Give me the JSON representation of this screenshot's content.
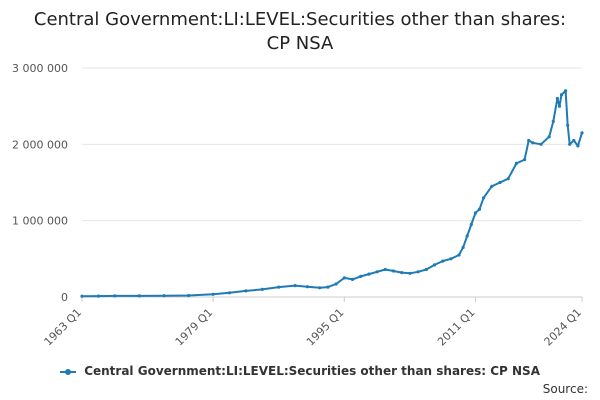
{
  "chart_data": {
    "type": "line",
    "title_line1": "Central Government:LI:LEVEL:Securities other than shares:",
    "title_line2": "CP NSA",
    "xlabel": "",
    "ylabel": "",
    "x_ticks": [
      "1963 Q1",
      "1979 Q1",
      "1995 Q1",
      "2011 Q1",
      "2024 Q1"
    ],
    "y_ticks": [
      "0",
      "1 000 000",
      "2 000 000",
      "3 000 000"
    ],
    "ylim": [
      0,
      3000000
    ],
    "xlim": [
      "1963 Q1",
      "2024 Q1"
    ],
    "grid": true,
    "legend_position": "bottom",
    "color": "#1f7bb6",
    "series": [
      {
        "name": "Central Government:LI:LEVEL:Securities other than shares: CP NSA",
        "points": [
          [
            "1963 Q1",
            10000
          ],
          [
            "1965 Q1",
            12000
          ],
          [
            "1967 Q1",
            14000
          ],
          [
            "1970 Q1",
            15000
          ],
          [
            "1973 Q1",
            17000
          ],
          [
            "1976 Q1",
            20000
          ],
          [
            "1979 Q1",
            35000
          ],
          [
            "1981 Q1",
            55000
          ],
          [
            "1983 Q1",
            80000
          ],
          [
            "1985 Q1",
            100000
          ],
          [
            "1987 Q1",
            130000
          ],
          [
            "1989 Q1",
            150000
          ],
          [
            "1990 Q3",
            135000
          ],
          [
            "1992 Q1",
            120000
          ],
          [
            "1993 Q1",
            130000
          ],
          [
            "1994 Q1",
            170000
          ],
          [
            "1995 Q1",
            250000
          ],
          [
            "1996 Q1",
            230000
          ],
          [
            "1997 Q1",
            270000
          ],
          [
            "1998 Q1",
            300000
          ],
          [
            "1999 Q1",
            330000
          ],
          [
            "2000 Q1",
            360000
          ],
          [
            "2001 Q1",
            340000
          ],
          [
            "2002 Q1",
            320000
          ],
          [
            "2003 Q1",
            310000
          ],
          [
            "2004 Q1",
            330000
          ],
          [
            "2005 Q1",
            360000
          ],
          [
            "2006 Q1",
            420000
          ],
          [
            "2007 Q1",
            470000
          ],
          [
            "2008 Q1",
            500000
          ],
          [
            "2009 Q1",
            550000
          ],
          [
            "2009 Q3",
            650000
          ],
          [
            "2010 Q1",
            800000
          ],
          [
            "2010 Q3",
            950000
          ],
          [
            "2011 Q1",
            1100000
          ],
          [
            "2011 Q3",
            1150000
          ],
          [
            "2012 Q1",
            1300000
          ],
          [
            "2013 Q1",
            1450000
          ],
          [
            "2014 Q1",
            1500000
          ],
          [
            "2015 Q1",
            1550000
          ],
          [
            "2016 Q1",
            1750000
          ],
          [
            "2017 Q1",
            1800000
          ],
          [
            "2017 Q3",
            2050000
          ],
          [
            "2018 Q1",
            2020000
          ],
          [
            "2019 Q1",
            2000000
          ],
          [
            "2020 Q1",
            2100000
          ],
          [
            "2020 Q3",
            2300000
          ],
          [
            "2021 Q1",
            2600000
          ],
          [
            "2021 Q2",
            2500000
          ],
          [
            "2021 Q3",
            2650000
          ],
          [
            "2022 Q1",
            2700000
          ],
          [
            "2022 Q2",
            2250000
          ],
          [
            "2022 Q3",
            2000000
          ],
          [
            "2023 Q1",
            2050000
          ],
          [
            "2023 Q3",
            1980000
          ],
          [
            "2024 Q1",
            2150000
          ]
        ]
      }
    ]
  },
  "source_label": "Source:"
}
